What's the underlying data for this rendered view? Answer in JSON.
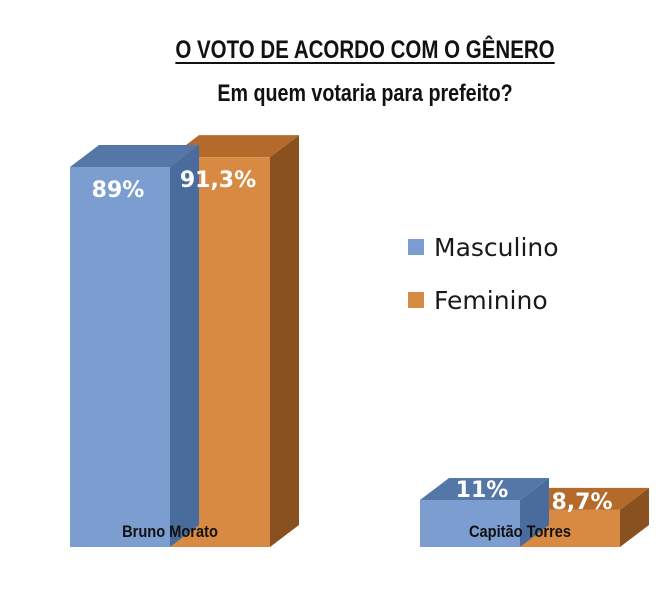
{
  "chart_data": {
    "type": "bar",
    "title": "O VOTO DE ACORDO COM O GÊNERO",
    "subtitle": "Em quem votaria para prefeito?",
    "categories": [
      "Bruno Morato",
      "Capitão Torres"
    ],
    "series": [
      {
        "name": "Masculino",
        "values": [
          89,
          11
        ],
        "labels": [
          "89%",
          "11%"
        ],
        "color": "#7b9dd0"
      },
      {
        "name": "Feminino",
        "values": [
          91.3,
          8.7
        ],
        "labels": [
          "91,3%",
          "8,7%"
        ],
        "color": "#d98a42"
      }
    ],
    "ylim": [
      0,
      100
    ],
    "grid": false,
    "legend": "right",
    "style": "3d"
  }
}
